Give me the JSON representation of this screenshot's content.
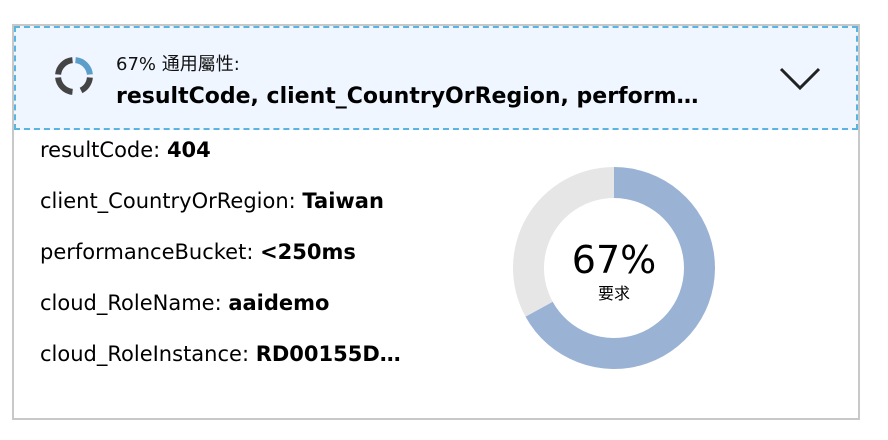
{
  "header": {
    "percent_label": "67% 通用屬性:",
    "properties": "resultCode, client_CountryOrRegion, perform…",
    "icon": "progress-ring-icon",
    "expand_icon": "chevron-down-icon"
  },
  "properties": [
    {
      "name": "resultCode: ",
      "value": "404"
    },
    {
      "name": "client_CountryOrRegion: ",
      "value": "Taiwan"
    },
    {
      "name": "performanceBucket: ",
      "value": "<250ms"
    },
    {
      "name": "cloud_RoleName: ",
      "value": "aaidemo"
    },
    {
      "name": "cloud_RoleInstance: ",
      "value": "RD00155D…"
    }
  ],
  "chart_data": {
    "type": "pie",
    "values": [
      67,
      33
    ],
    "center_value": "67%",
    "center_label": "要求",
    "colors": [
      "#9ab3d5",
      "#e6e6e6"
    ]
  }
}
